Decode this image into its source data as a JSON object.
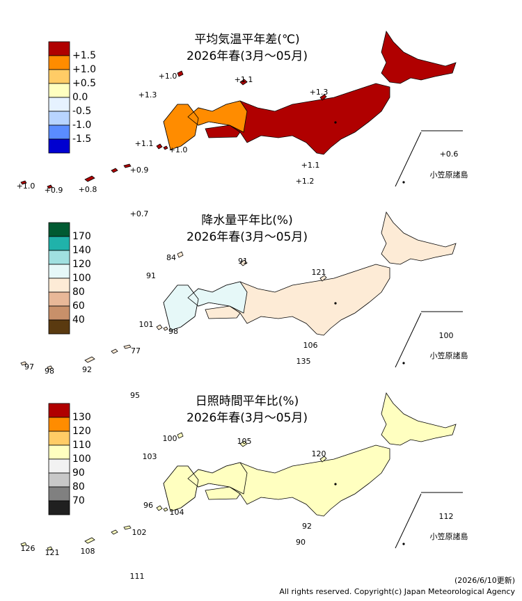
{
  "panels": [
    {
      "title": "平均気温平年差(℃)",
      "subtitle": "2026年春(3月～05月)",
      "legend_colors": [
        "#b00000",
        "#ff8c00",
        "#ffcc66",
        "#ffffc0",
        "#e6f2ff",
        "#b8d4ff",
        "#5a8cff",
        "#0000d0"
      ],
      "legend_labels": [
        "+1.5",
        "+1.0",
        "+0.5",
        "0.0",
        "-0.5",
        "-1.0",
        "-1.5"
      ],
      "map_color": "#b00000",
      "west_color": "#ff8c00",
      "stations": [
        "+1.0",
        "+1.1",
        "+1.3",
        "+1.3",
        "+1.1",
        "+1.0",
        "+1.1",
        "+1.2",
        "+0.6",
        "+0.9",
        "+1.0",
        "+0.9",
        "+0.8",
        "+0.7"
      ],
      "islands_label": "小笠原諸島"
    },
    {
      "title": "降水量平年比(%)",
      "subtitle": "2026年春(3月～05月)",
      "legend_colors": [
        "#005a32",
        "#20b2aa",
        "#a0e0e0",
        "#e6f8f8",
        "#fdebd6",
        "#e8b898",
        "#c8906a",
        "#5a3a10"
      ],
      "legend_labels": [
        "170",
        "140",
        "120",
        "100",
        "80",
        "60",
        "40"
      ],
      "map_color": "#fdebd6",
      "west_color": "#e6f8f8",
      "stations": [
        "84",
        "91",
        "91",
        "121",
        "101",
        "98",
        "106",
        "135",
        "100",
        "77",
        "97",
        "98",
        "92",
        "95"
      ],
      "islands_label": "小笠原諸島"
    },
    {
      "title": "日照時間平年比(%)",
      "subtitle": "2026年春(3月～05月)",
      "legend_colors": [
        "#b00000",
        "#ff8c00",
        "#ffcc66",
        "#ffffc0",
        "#f2f2f2",
        "#c8c8c8",
        "#808080",
        "#202020"
      ],
      "legend_labels": [
        "130",
        "120",
        "110",
        "100",
        "90",
        "80",
        "70"
      ],
      "map_color": "#ffffc0",
      "west_color": "#ffffc0",
      "stations": [
        "100",
        "105",
        "103",
        "120",
        "96",
        "104",
        "92",
        "90",
        "112",
        "102",
        "126",
        "121",
        "108",
        "111"
      ],
      "islands_label": "小笠原諸島"
    }
  ],
  "footer": {
    "updated": "(2026/6/10更新)",
    "copyright": "All rights reserved. Copyright(c) Japan Meteorological Agency"
  }
}
